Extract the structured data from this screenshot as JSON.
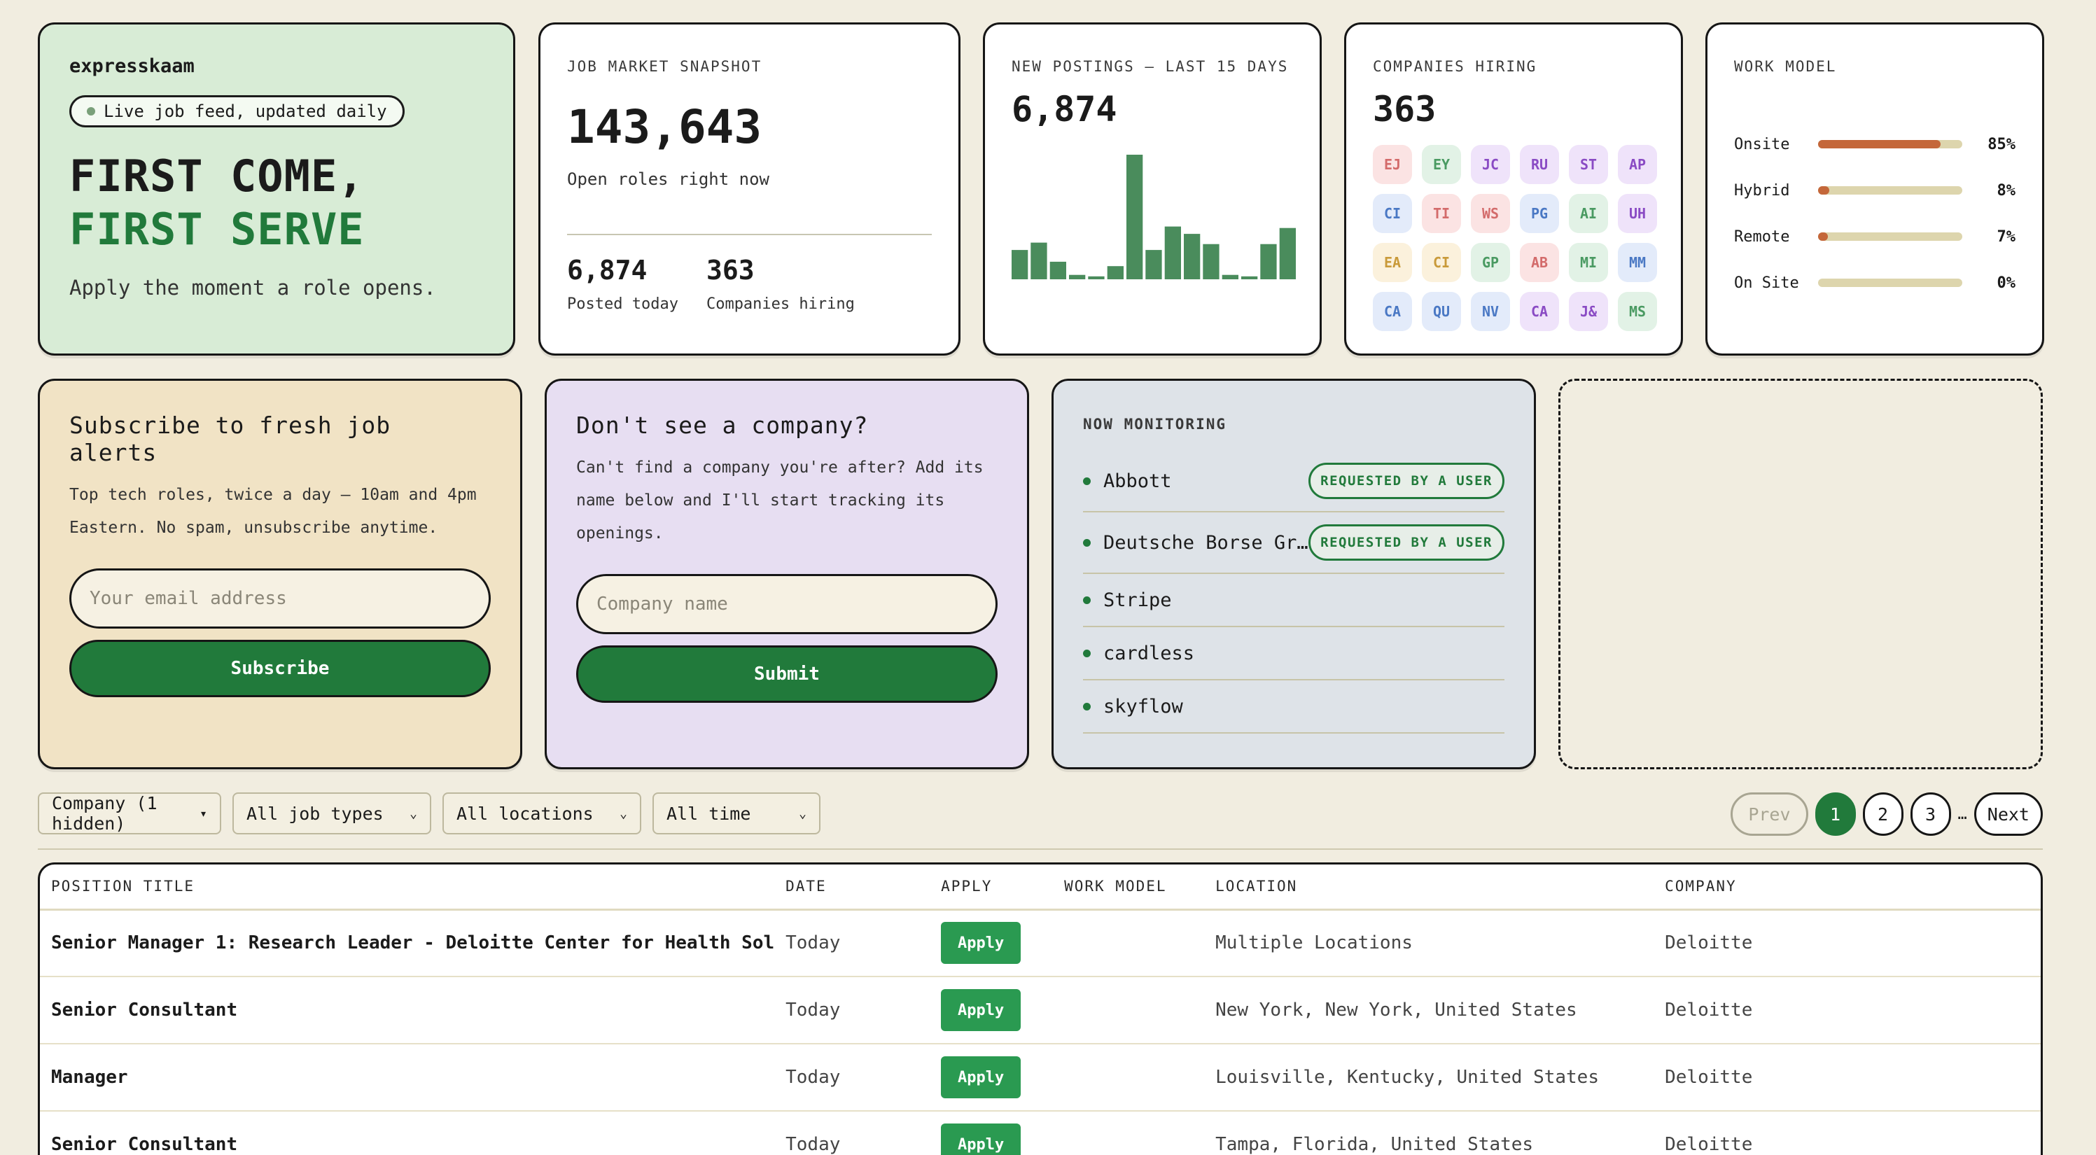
{
  "hero": {
    "brand": "expresskaam",
    "pill": "Live job feed, updated daily",
    "headline_part1": "FIRST COME, ",
    "headline_part2": "FIRST SERVE",
    "tagline": "Apply the moment a role opens."
  },
  "snapshot": {
    "label": "JOB MARKET SNAPSHOT",
    "total": "143,643",
    "total_label": "Open roles right now",
    "posted_today": "6,874",
    "posted_today_label": "Posted today",
    "companies": "363",
    "companies_label": "Companies hiring"
  },
  "postings": {
    "label": "NEW POSTINGS — LAST 15 DAYS",
    "total": "6,874"
  },
  "chart_data": {
    "type": "bar",
    "title": "NEW POSTINGS — LAST 15 DAYS",
    "categories": [
      "1",
      "2",
      "3",
      "4",
      "5",
      "6",
      "7",
      "8",
      "9",
      "10",
      "11",
      "12",
      "13",
      "14",
      "15"
    ],
    "values": [
      40,
      50,
      24,
      6,
      4,
      18,
      170,
      40,
      72,
      62,
      48,
      6,
      4,
      48,
      70
    ],
    "color": "#4a8c5c"
  },
  "companies": {
    "label": "COMPANIES HIRING",
    "count": "363",
    "chips": [
      {
        "t": "EJ",
        "bg": "#fbe3e3",
        "fg": "#d36b6b"
      },
      {
        "t": "EY",
        "bg": "#e2f2e6",
        "fg": "#4a9a62"
      },
      {
        "t": "JC",
        "bg": "#efe3fa",
        "fg": "#8a4bc4"
      },
      {
        "t": "RU",
        "bg": "#efe3fa",
        "fg": "#8a4bc4"
      },
      {
        "t": "ST",
        "bg": "#efe3fa",
        "fg": "#8a4bc4"
      },
      {
        "t": "AP",
        "bg": "#efe3fa",
        "fg": "#8a4bc4"
      },
      {
        "t": "CI",
        "bg": "#e3ebfa",
        "fg": "#4a78c4"
      },
      {
        "t": "TI",
        "bg": "#fbe3e3",
        "fg": "#d36b6b"
      },
      {
        "t": "WS",
        "bg": "#fbe3e3",
        "fg": "#d36b6b"
      },
      {
        "t": "PG",
        "bg": "#e3ebfa",
        "fg": "#4a78c4"
      },
      {
        "t": "AI",
        "bg": "#e2f2e6",
        "fg": "#4a9a62"
      },
      {
        "t": "UH",
        "bg": "#efe3fa",
        "fg": "#8a4bc4"
      },
      {
        "t": "EA",
        "bg": "#fbf1dc",
        "fg": "#c99a3a"
      },
      {
        "t": "CI",
        "bg": "#fbf1dc",
        "fg": "#c99a3a"
      },
      {
        "t": "GP",
        "bg": "#e2f2e6",
        "fg": "#4a9a62"
      },
      {
        "t": "AB",
        "bg": "#fbe3e3",
        "fg": "#d36b6b"
      },
      {
        "t": "MI",
        "bg": "#e2f2e6",
        "fg": "#4a9a62"
      },
      {
        "t": "MM",
        "bg": "#e3ebfa",
        "fg": "#4a78c4"
      },
      {
        "t": "CA",
        "bg": "#e3ebfa",
        "fg": "#4a78c4"
      },
      {
        "t": "QU",
        "bg": "#e3ebfa",
        "fg": "#4a78c4"
      },
      {
        "t": "NV",
        "bg": "#e3ebfa",
        "fg": "#4a78c4"
      },
      {
        "t": "CA",
        "bg": "#efe3fa",
        "fg": "#8a4bc4"
      },
      {
        "t": "J&",
        "bg": "#efe3fa",
        "fg": "#8a4bc4"
      },
      {
        "t": "MS",
        "bg": "#e2f2e6",
        "fg": "#4a9a62"
      }
    ]
  },
  "work_model": {
    "label": "WORK MODEL",
    "rows": [
      {
        "name": "Onsite",
        "pct": "85%",
        "value": 85
      },
      {
        "name": "Hybrid",
        "pct": "8%",
        "value": 8
      },
      {
        "name": "Remote",
        "pct": "7%",
        "value": 7
      },
      {
        "name": "On Site",
        "pct": "0%",
        "value": 0
      }
    ]
  },
  "subscribe": {
    "title": "Subscribe to fresh job alerts",
    "desc": "Top tech roles, twice a day — 10am and 4pm Eastern. No spam, unsubscribe anytime.",
    "placeholder": "Your email address",
    "button": "Subscribe"
  },
  "request": {
    "title": "Don't see a company?",
    "desc": "Can't find a company you're after? Add its name below and I'll start tracking its openings.",
    "placeholder": "Company name",
    "button": "Submit"
  },
  "monitoring": {
    "label": "NOW MONITORING",
    "badge": "REQUESTED BY A USER",
    "items": [
      {
        "name": "Abbott"
      },
      {
        "name": "Deutsche Borse Group"
      },
      {
        "name": "Stripe"
      },
      {
        "name": "cardless"
      },
      {
        "name": "skyflow"
      }
    ]
  },
  "filters": {
    "company": "Company (1 hidden)",
    "job_types": "All job types",
    "locations": "All locations",
    "time": "All time"
  },
  "pager": {
    "prev": "Prev",
    "p1": "1",
    "p2": "2",
    "p3": "3",
    "ellipsis": "…",
    "next": "Next"
  },
  "table": {
    "headers": [
      "POSITION TITLE",
      "DATE",
      "APPLY",
      "WORK MODEL",
      "LOCATION",
      "COMPANY"
    ],
    "apply_label": "Apply",
    "rows": [
      {
        "title": "Senior Manager 1: Research Leader - Deloitte Center for Health Sol",
        "date": "Today",
        "work_model": "",
        "location": "Multiple Locations",
        "company": "Deloitte"
      },
      {
        "title": "Senior Consultant",
        "date": "Today",
        "work_model": "",
        "location": "New York, New York, United States",
        "company": "Deloitte"
      },
      {
        "title": "Manager",
        "date": "Today",
        "work_model": "",
        "location": "Louisville, Kentucky, United States",
        "company": "Deloitte"
      },
      {
        "title": "Senior Consultant",
        "date": "Today",
        "work_model": "",
        "location": "Tampa, Florida, United States",
        "company": "Deloitte"
      }
    ]
  }
}
